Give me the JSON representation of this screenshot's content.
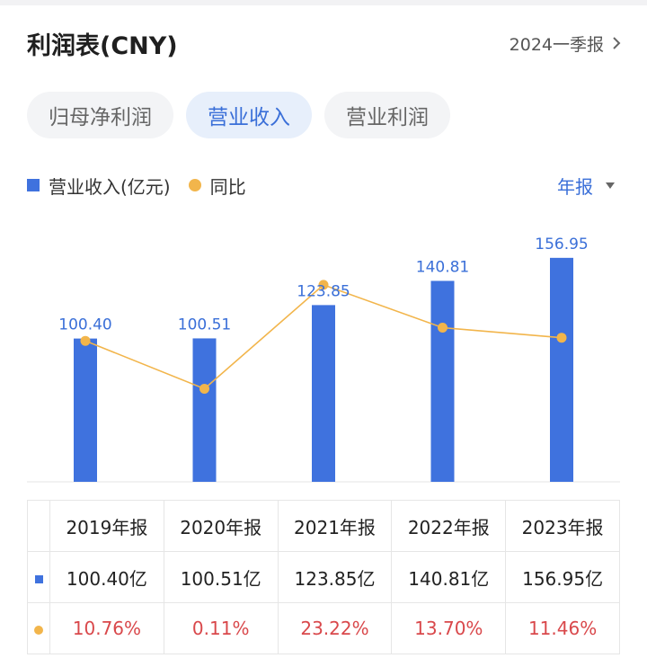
{
  "header": {
    "title": "利润表(CNY)",
    "period": "2024一季报"
  },
  "tabs": [
    {
      "label": "归母净利润",
      "active": false
    },
    {
      "label": "营业收入",
      "active": true
    },
    {
      "label": "营业利润",
      "active": false
    }
  ],
  "legend": {
    "bar_label": "营业收入(亿元)",
    "line_label": "同比"
  },
  "report_type": "年报",
  "colors": {
    "bar": "#3f72de",
    "line": "#f2b54b",
    "accent": "#3a6fd8",
    "negative_text": "#d9484b"
  },
  "chart_data": {
    "type": "bar",
    "categories": [
      "2019年报",
      "2020年报",
      "2021年报",
      "2022年报",
      "2023年报"
    ],
    "series": [
      {
        "name": "营业收入(亿元)",
        "type": "bar",
        "values": [
          100.4,
          100.51,
          123.85,
          140.81,
          156.95
        ]
      },
      {
        "name": "同比",
        "type": "line",
        "unit": "%",
        "values": [
          10.76,
          0.11,
          23.22,
          13.7,
          11.46
        ]
      }
    ],
    "data_labels": [
      "100.40",
      "100.51",
      "123.85",
      "140.81",
      "156.95"
    ]
  },
  "table": {
    "headers": [
      "2019年报",
      "2020年报",
      "2021年报",
      "2022年报",
      "2023年报"
    ],
    "revenue_row": [
      "100.40亿",
      "100.51亿",
      "123.85亿",
      "140.81亿",
      "156.95亿"
    ],
    "yoy_row": [
      "10.76%",
      "0.11%",
      "23.22%",
      "13.70%",
      "11.46%"
    ]
  }
}
